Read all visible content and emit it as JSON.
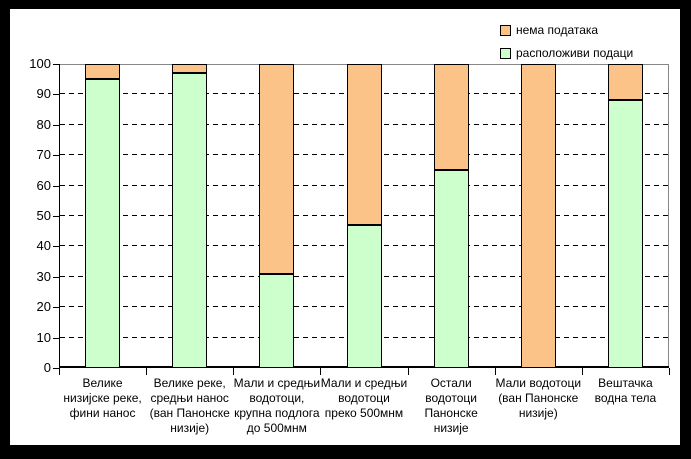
{
  "colors": {
    "frame": "#000000",
    "background": "#FFFFFF",
    "available": "#CCFFCC",
    "missing": "#FCC389",
    "gridline": "#000000",
    "plot_border": "#878787",
    "axis": "#000000"
  },
  "chart_data": {
    "type": "bar",
    "stacked": true,
    "title": "",
    "xlabel": "",
    "ylabel": "",
    "ylim": [
      0,
      100
    ],
    "yticks": [
      0,
      10,
      20,
      30,
      40,
      50,
      60,
      70,
      80,
      90,
      100
    ],
    "grid": "horizontal-dashed",
    "categories": [
      [
        "Велике",
        "низијске реке,",
        "фини нанос"
      ],
      [
        "Велике реке,",
        "средњи нанос",
        "(ван Панонске",
        "низије)"
      ],
      [
        "Мали и средњи",
        "водотоци,",
        "крупна подлога",
        "до 500мнм"
      ],
      [
        "Мали и средњи",
        "водотоци",
        "преко 500мнм"
      ],
      [
        "Остали",
        "водотоци",
        "Панонске",
        "низије"
      ],
      [
        "Мали водотоци",
        "(ван Панонске",
        "низије)"
      ],
      [
        "Вештачка",
        "водна тела"
      ]
    ],
    "series": [
      {
        "name": "расположиви подаци",
        "color": "#CCFFCC",
        "values": [
          95,
          97,
          31,
          47,
          65,
          0,
          88
        ]
      },
      {
        "name": "нема података",
        "color": "#FCC389",
        "values": [
          5,
          3,
          69,
          53,
          35,
          100,
          12
        ]
      }
    ],
    "legend": {
      "position": "top-right",
      "entries": [
        {
          "label": "нема података",
          "color": "#FCC389"
        },
        {
          "label": "расположиви подаци",
          "color": "#CCFFCC"
        }
      ]
    }
  }
}
